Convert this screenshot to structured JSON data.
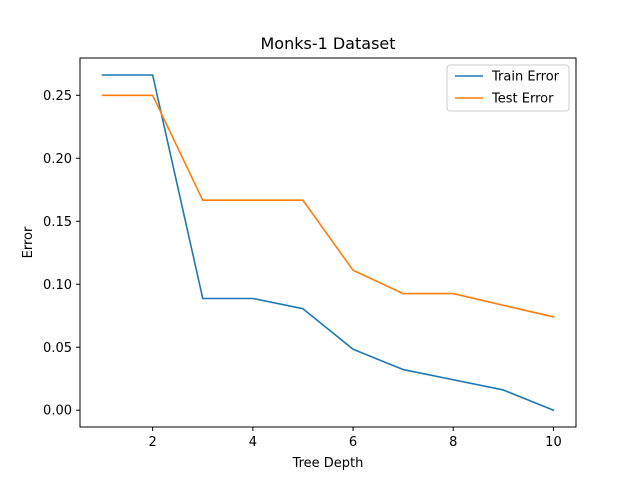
{
  "chart_data": {
    "type": "line",
    "title": "Monks-1 Dataset",
    "xlabel": "Tree Depth",
    "ylabel": "Error",
    "x": [
      1,
      2,
      3,
      4,
      5,
      6,
      7,
      8,
      9,
      10
    ],
    "xlim": [
      0.55,
      10.45
    ],
    "ylim": [
      -0.0133,
      0.2796
    ],
    "xticks": [
      2,
      4,
      6,
      8,
      10
    ],
    "xtick_labels": [
      "2",
      "4",
      "6",
      "8",
      "10"
    ],
    "yticks": [
      0.0,
      0.05,
      0.1,
      0.15,
      0.2,
      0.25
    ],
    "ytick_labels": [
      "0.00",
      "0.05",
      "0.10",
      "0.15",
      "0.20",
      "0.25"
    ],
    "grid": false,
    "legend_position": "top-right",
    "series": [
      {
        "name": "Train Error",
        "color": "#1f77b4",
        "values": [
          0.2661,
          0.2661,
          0.0887,
          0.0887,
          0.0806,
          0.0484,
          0.0323,
          0.0242,
          0.0161,
          0.0
        ]
      },
      {
        "name": "Test Error",
        "color": "#ff7f0e",
        "values": [
          0.25,
          0.25,
          0.1667,
          0.1667,
          0.1667,
          0.1111,
          0.0926,
          0.0926,
          0.0833,
          0.0741
        ]
      }
    ]
  }
}
